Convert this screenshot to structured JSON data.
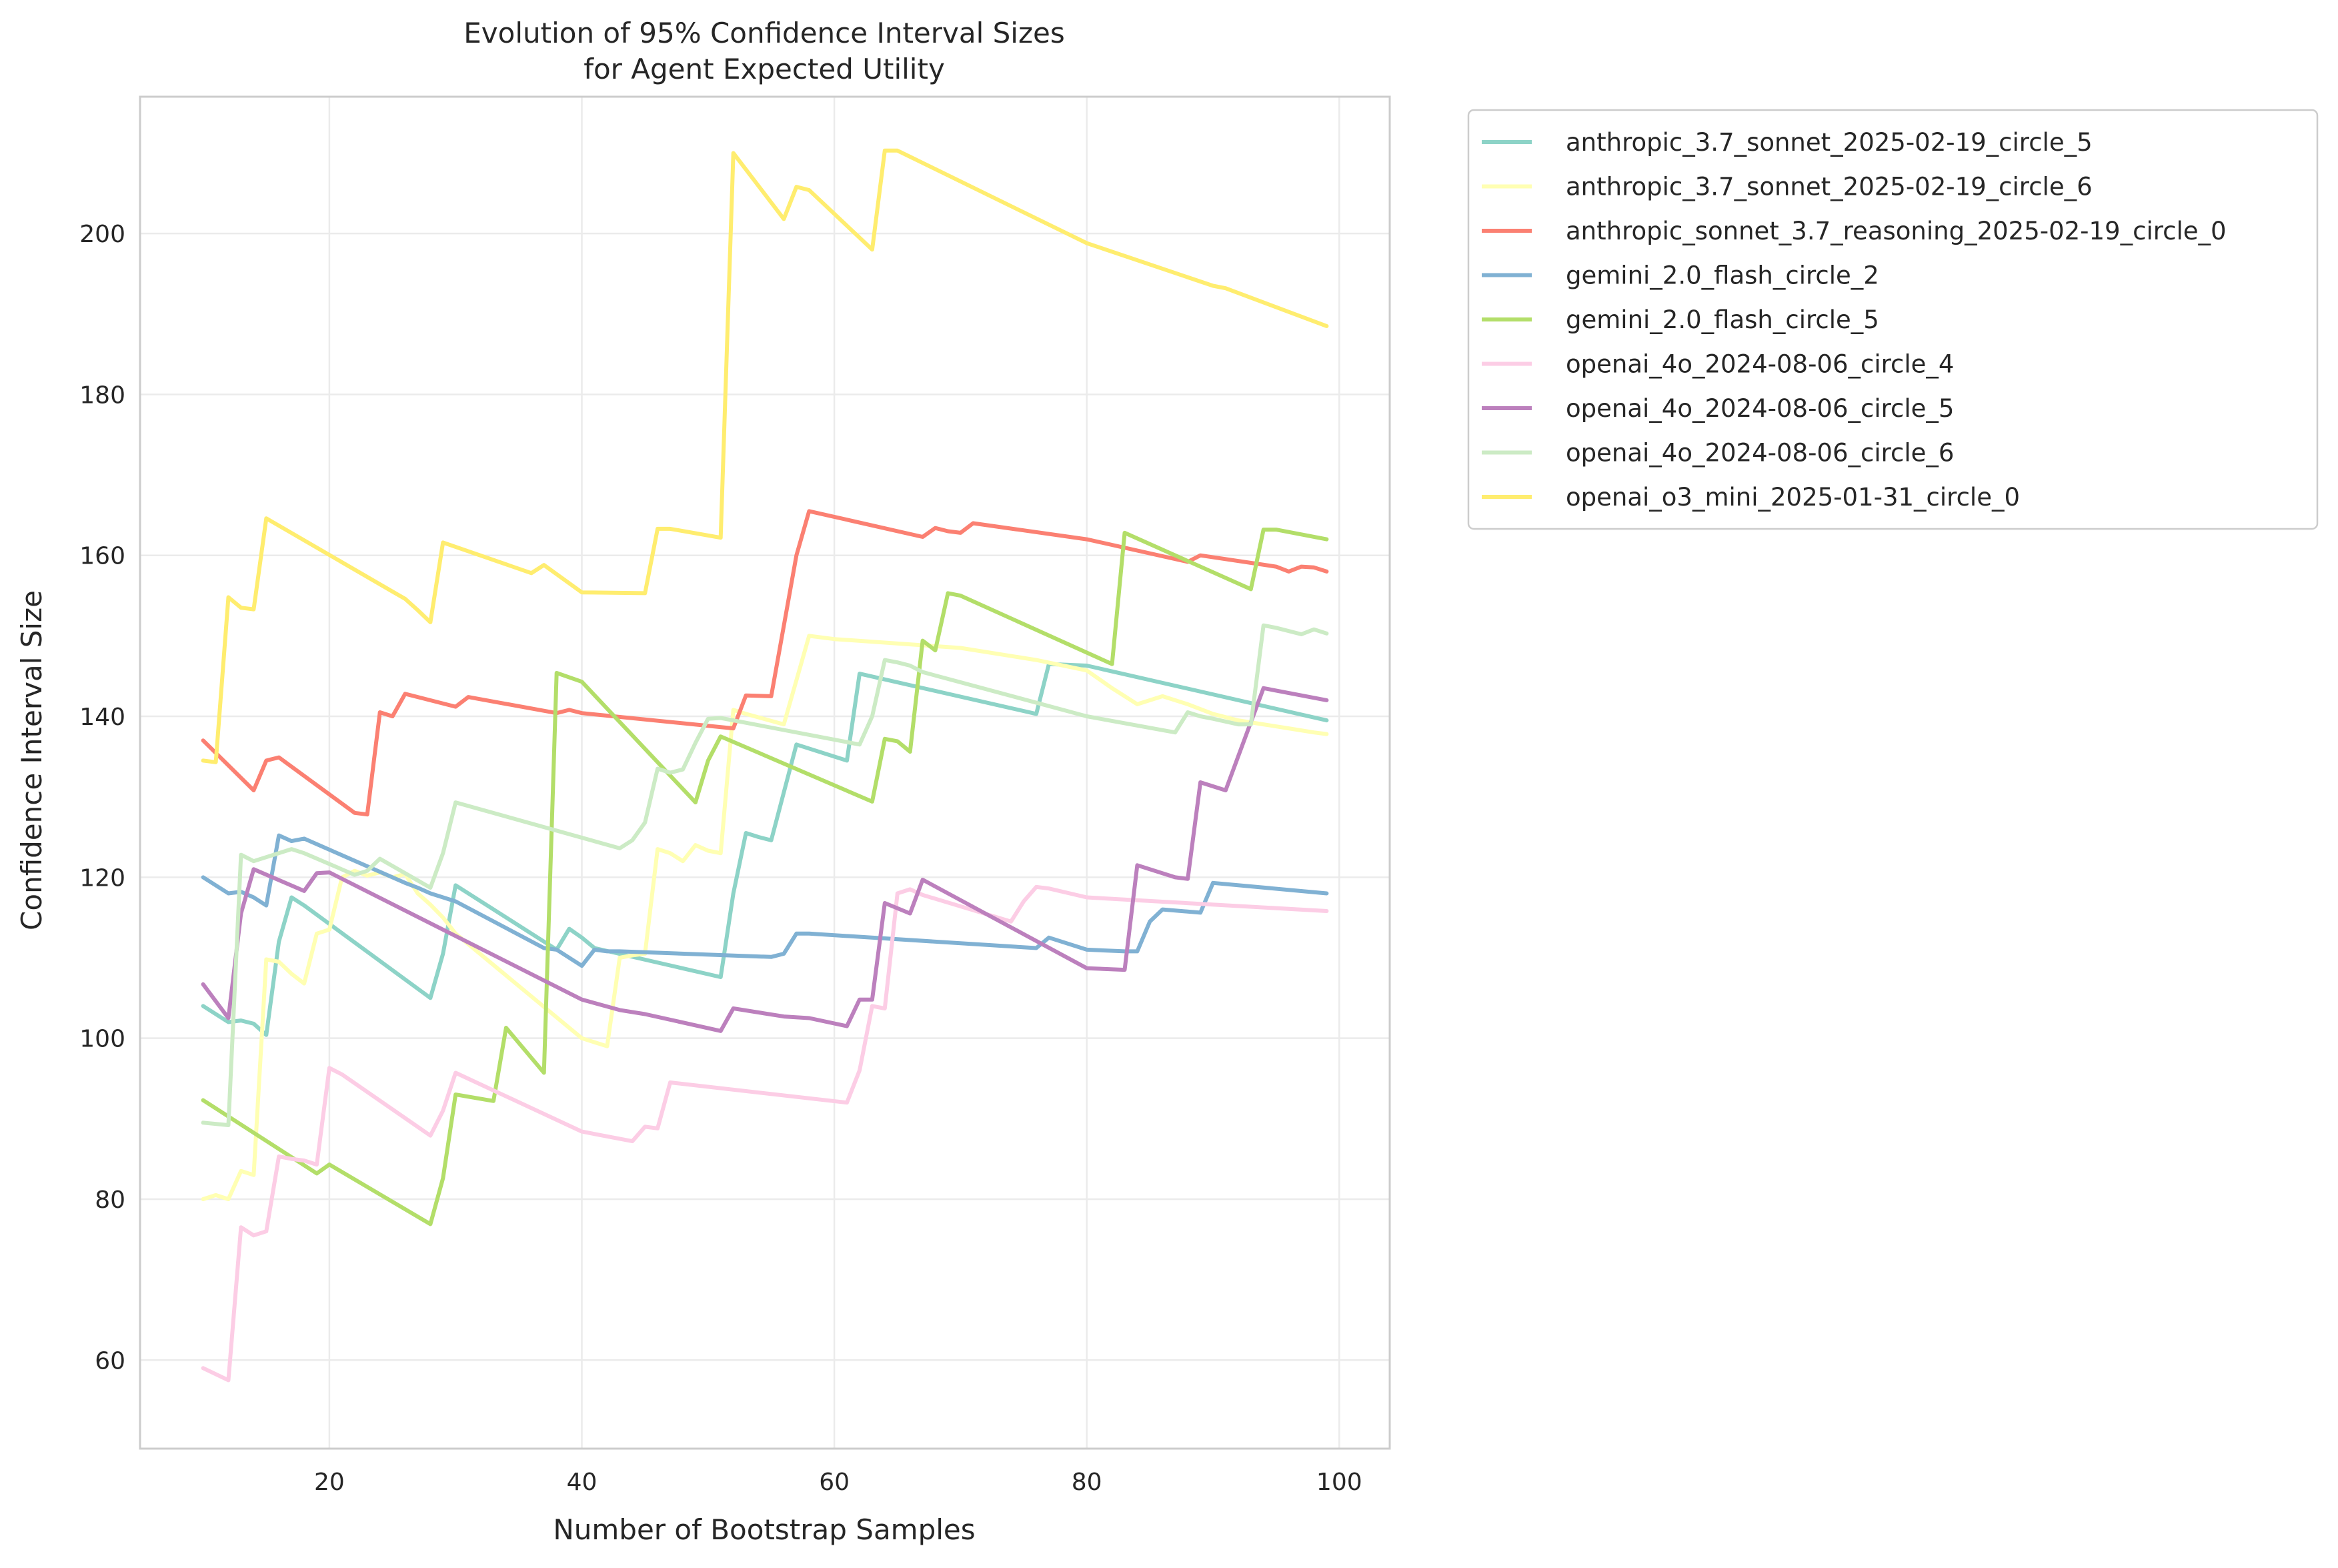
{
  "chart_data": {
    "type": "line",
    "title": [
      "Evolution of 95% Confidence Interval Sizes",
      "for Agent Expected Utility"
    ],
    "xlabel": "Number of Bootstrap Samples",
    "ylabel": "Confidence Interval Size",
    "xlim": [
      5,
      104
    ],
    "ylim": [
      49,
      217
    ],
    "xticks": [
      20,
      40,
      60,
      80,
      100
    ],
    "yticks": [
      60,
      80,
      100,
      120,
      140,
      160,
      180,
      200
    ],
    "grid": true,
    "legend": "outside-top-right",
    "series": [
      {
        "name": "anthropic_3.7_sonnet_2025-02-19_circle_5",
        "color": "#8dd3c7",
        "x": [
          10,
          12,
          13,
          14,
          15,
          16,
          17,
          18,
          28,
          29,
          30,
          38,
          39,
          40,
          41,
          51,
          52,
          53,
          54,
          55,
          57,
          61,
          62,
          76,
          77,
          80,
          99
        ],
        "y": [
          104,
          102,
          102.2,
          101.8,
          100.4,
          112,
          117.5,
          116.5,
          105,
          110.5,
          119,
          111,
          113.6,
          112.5,
          111.2,
          107.6,
          118,
          125.5,
          125,
          124.6,
          136.5,
          134.5,
          145.3,
          140.3,
          146.5,
          146.3,
          139.5
        ]
      },
      {
        "name": "anthropic_3.7_sonnet_2025-02-19_circle_6",
        "color": "#ffffb3",
        "x": [
          10,
          11,
          12,
          13,
          14,
          15,
          16,
          17,
          18,
          19,
          20,
          21,
          22,
          23,
          24,
          25,
          26,
          27,
          28,
          29,
          30,
          40,
          42,
          43,
          44,
          45,
          46,
          47,
          48,
          49,
          50,
          51,
          52,
          53,
          56,
          58,
          59,
          60,
          70,
          76,
          80,
          82,
          84,
          86,
          88,
          90,
          92,
          94,
          96,
          98,
          99
        ],
        "y": [
          80,
          80.5,
          80,
          83.5,
          83,
          109.8,
          109.5,
          108,
          106.8,
          113,
          113.5,
          120,
          120.8,
          120.2,
          120.6,
          120,
          120.4,
          118,
          116.6,
          115,
          113,
          100,
          99,
          110,
          110.3,
          110.5,
          123.5,
          123,
          122,
          124,
          123.3,
          123,
          140.8,
          140.3,
          139,
          150,
          149.8,
          149.6,
          148.5,
          147,
          145.7,
          143.5,
          141.5,
          142.5,
          141.5,
          140.3,
          139.5,
          139,
          138.5,
          138,
          137.8
        ]
      },
      {
        "name": "anthropic_sonnet_3.7_reasoning_2025-02-19_circle_0",
        "color": "#fb8072",
        "x": [
          10,
          14,
          15,
          16,
          22,
          23,
          24,
          25,
          26,
          30,
          31,
          38,
          39,
          40,
          52,
          53,
          55,
          57,
          58,
          67,
          68,
          69,
          70,
          71,
          80,
          88,
          89,
          95,
          96,
          97,
          98,
          99
        ],
        "y": [
          137,
          130.8,
          134.5,
          134.9,
          128,
          127.8,
          140.5,
          140,
          142.8,
          141.2,
          142.4,
          140.4,
          140.8,
          140.4,
          138.5,
          142.6,
          142.5,
          160,
          165.5,
          162.3,
          163.4,
          163,
          162.8,
          164,
          162,
          159.2,
          160,
          158.6,
          158,
          158.6,
          158.5,
          158
        ]
      },
      {
        "name": "gemini_2.0_flash_circle_2",
        "color": "#80b1d3",
        "x": [
          10,
          12,
          13,
          14,
          15,
          16,
          17,
          18,
          26,
          27,
          28,
          29,
          30,
          37,
          38,
          39,
          40,
          41,
          42,
          43,
          55,
          56,
          57,
          58,
          76,
          77,
          80,
          83,
          84,
          85,
          86,
          89,
          90,
          99
        ],
        "y": [
          120,
          118,
          118.2,
          117.5,
          116.5,
          125.2,
          124.5,
          124.8,
          119.3,
          118.7,
          118,
          117.5,
          117,
          111.2,
          111,
          110,
          109,
          111,
          110.8,
          110.8,
          110.1,
          110.5,
          113,
          113,
          111.2,
          112.5,
          111,
          110.8,
          110.8,
          114.5,
          116,
          115.6,
          119.3,
          118
        ]
      },
      {
        "name": "gemini_2.0_flash_circle_5",
        "color": "#b3de69",
        "x": [
          10,
          19,
          20,
          28,
          29,
          30,
          33,
          34,
          37,
          38,
          40,
          49,
          50,
          51,
          63,
          64,
          65,
          66,
          67,
          68,
          69,
          70,
          82,
          83,
          93,
          94,
          95,
          99
        ],
        "y": [
          92.3,
          83.2,
          84.3,
          76.9,
          82.6,
          93,
          92.2,
          101.3,
          95.7,
          145.4,
          144.3,
          129.3,
          134.5,
          137.5,
          129.4,
          137.2,
          136.9,
          135.6,
          149.4,
          148.2,
          155.3,
          155,
          146.5,
          162.8,
          155.8,
          163.2,
          163.2,
          162
        ]
      },
      {
        "name": "openai_4o_2024-08-06_circle_4",
        "color": "#fccde5",
        "x": [
          10,
          12,
          13,
          14,
          15,
          16,
          17,
          18,
          19,
          20,
          21,
          28,
          29,
          30,
          40,
          44,
          45,
          46,
          47,
          61,
          62,
          63,
          64,
          65,
          66,
          67,
          74,
          75,
          76,
          77,
          80,
          99
        ],
        "y": [
          59,
          57.5,
          76.5,
          75.5,
          76,
          85.3,
          85,
          84.8,
          84.3,
          96.3,
          95.5,
          87.9,
          91,
          95.7,
          88.4,
          87.2,
          89,
          88.8,
          94.5,
          92,
          96,
          104,
          103.7,
          118,
          118.5,
          117.8,
          114.5,
          117,
          118.8,
          118.6,
          117.5,
          115.8
        ]
      },
      {
        "name": "openai_4o_2024-08-06_circle_5",
        "color": "#bc80bd",
        "x": [
          10,
          12,
          13,
          14,
          18,
          19,
          20,
          40,
          43,
          45,
          51,
          52,
          56,
          58,
          61,
          62,
          63,
          64,
          66,
          67,
          80,
          83,
          84,
          87,
          88,
          89,
          91,
          94,
          99
        ],
        "y": [
          106.7,
          102.5,
          115.5,
          121,
          118.3,
          120.5,
          120.6,
          104.8,
          103.5,
          103,
          100.9,
          103.7,
          102.7,
          102.5,
          101.5,
          104.8,
          104.8,
          116.8,
          115.5,
          119.7,
          108.7,
          108.5,
          121.5,
          120,
          119.8,
          131.8,
          130.8,
          143.5,
          142
        ]
      },
      {
        "name": "openai_4o_2024-08-06_circle_6",
        "color": "#ccebc5",
        "x": [
          10,
          12,
          13,
          14,
          17,
          18,
          22,
          23,
          24,
          28,
          29,
          30,
          43,
          44,
          45,
          46,
          47,
          48,
          49,
          50,
          51,
          52,
          62,
          63,
          64,
          65,
          66,
          67,
          80,
          87,
          88,
          89,
          90,
          92,
          93,
          94,
          95,
          97,
          98,
          99
        ],
        "y": [
          89.5,
          89.2,
          122.8,
          122,
          123.5,
          123,
          120.3,
          120.8,
          122.3,
          118.7,
          123,
          129.3,
          123.6,
          124.6,
          126.8,
          133.5,
          133,
          133.4,
          136.7,
          139.7,
          139.8,
          139.5,
          136.5,
          140,
          147,
          146.7,
          146.3,
          145.5,
          140,
          138,
          140.5,
          140,
          139.7,
          139,
          139,
          151.3,
          151,
          150.2,
          150.8,
          150.3
        ]
      },
      {
        "name": "openai_o3_mini_2025-01-31_circle_0",
        "color": "#ffed6f",
        "x": [
          10,
          11,
          12,
          13,
          14,
          15,
          25,
          26,
          27,
          28,
          29,
          36,
          37,
          40,
          45,
          46,
          47,
          51,
          52,
          56,
          57,
          58,
          63,
          64,
          65,
          80,
          90,
          91,
          99
        ],
        "y": [
          134.5,
          134.3,
          154.8,
          153.5,
          153.3,
          164.6,
          155.5,
          154.6,
          153.2,
          151.7,
          161.6,
          157.8,
          158.8,
          155.4,
          155.3,
          163.3,
          163.3,
          162.2,
          210,
          201.8,
          205.8,
          205.4,
          198,
          210.3,
          210.3,
          198.8,
          193.5,
          193.2,
          188.5
        ]
      }
    ]
  }
}
